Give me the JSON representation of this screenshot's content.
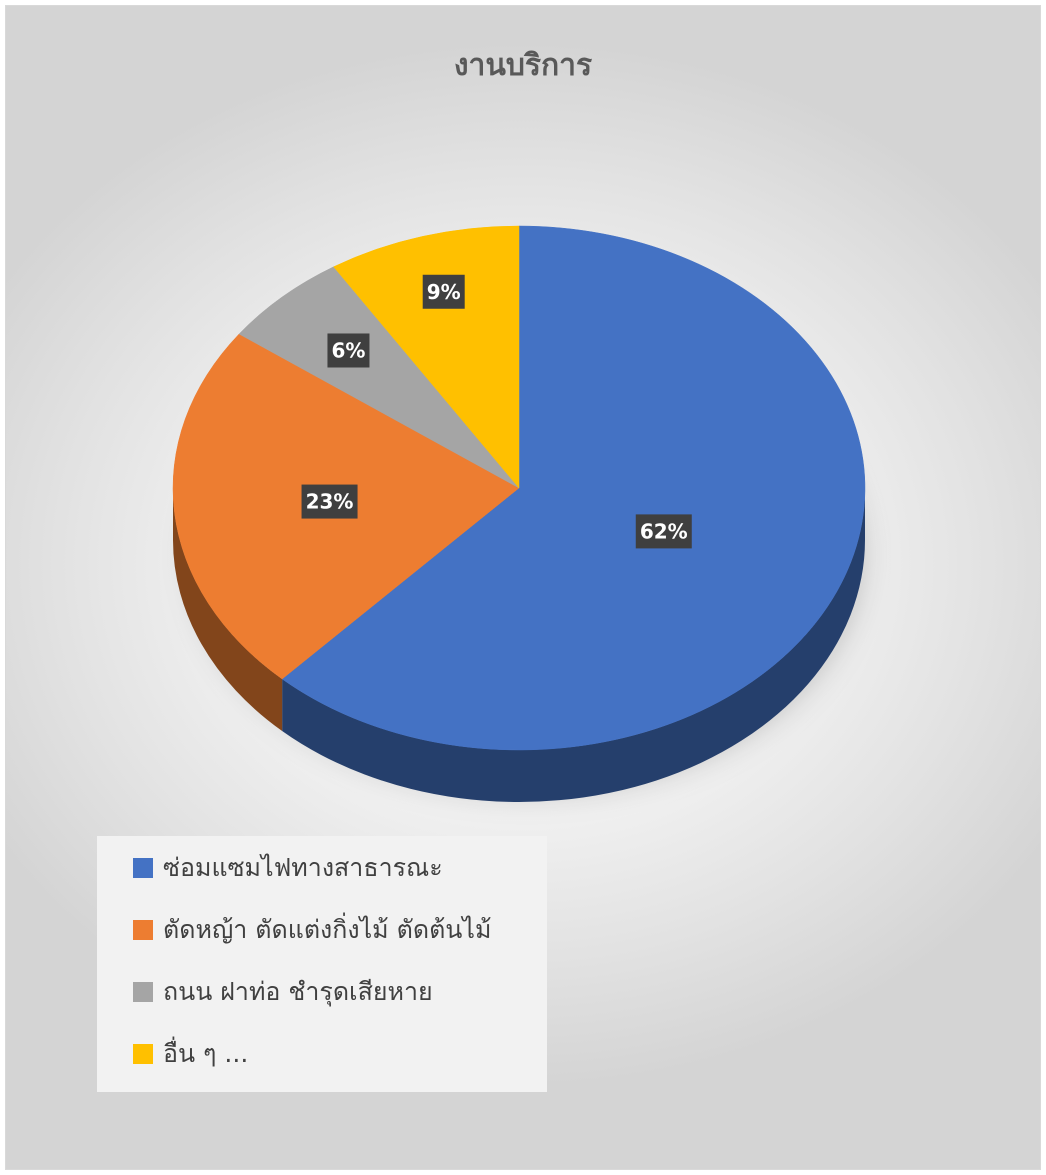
{
  "chart_data": {
    "type": "pie",
    "title": "งานบริการ",
    "categories": [
      "ซ่อมแซมไฟทางสาธารณะ",
      "ตัดหญ้า ตัดแต่งกิ่งไม้ ตัดต้นไม้",
      "ถนน ฝาท่อ ชำรุดเสียหาย",
      "อื่น ๆ ..."
    ],
    "values": [
      62,
      23,
      6,
      9
    ],
    "data_labels": [
      "62%",
      "23%",
      "6%",
      "9%"
    ],
    "colors": [
      "#4472C4",
      "#ED7D31",
      "#A5A5A5",
      "#FFC000"
    ],
    "legend_position": "bottom-left"
  }
}
